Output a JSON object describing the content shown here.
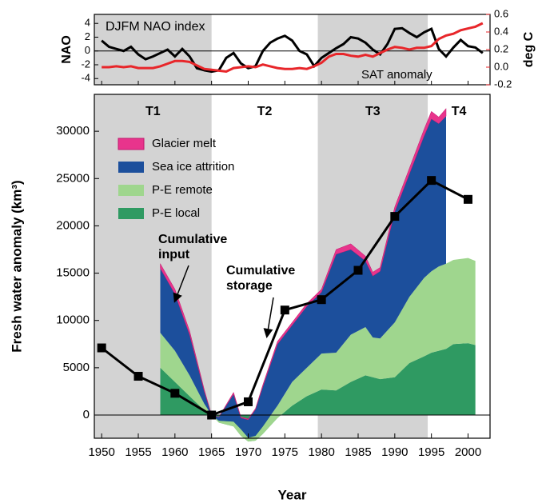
{
  "chart_data": [
    {
      "type": "line",
      "xlim": [
        1949,
        2003
      ],
      "xticks": [
        1950,
        1955,
        1960,
        1965,
        1970,
        1975,
        1980,
        1985,
        1990,
        1995,
        2000
      ],
      "ylim": [
        -4.9,
        5.3
      ],
      "yticks": [
        4,
        2,
        0,
        -2,
        -4
      ],
      "y2lim": [
        -0.2,
        0.6
      ],
      "y2ticks": [
        0.6,
        0.4,
        0.2,
        {
          "value": 0,
          "label": "0.0"
        },
        -0.2
      ],
      "ylabel": "NAO",
      "y2label": "deg C",
      "periods": [
        {
          "start": 1949,
          "end": 1965,
          "shaded": true
        },
        {
          "start": 1965,
          "end": 1979.5,
          "shaded": false
        },
        {
          "start": 1979.5,
          "end": 1994.5,
          "shaded": true
        },
        {
          "start": 1994.5,
          "end": 2003,
          "shaded": false
        }
      ],
      "x": [
        1950,
        1951,
        1952,
        1953,
        1954,
        1955,
        1956,
        1957,
        1958,
        1959,
        1960,
        1961,
        1962,
        1963,
        1964,
        1965,
        1966,
        1967,
        1968,
        1969,
        1970,
        1971,
        1972,
        1973,
        1974,
        1975,
        1976,
        1977,
        1978,
        1979,
        1980,
        1981,
        1982,
        1983,
        1984,
        1985,
        1986,
        1987,
        1988,
        1989,
        1990,
        1991,
        1992,
        1993,
        1994,
        1995,
        1996,
        1997,
        1998,
        1999,
        2000,
        2001,
        2002
      ],
      "series": [
        {
          "name": "DJFM NAO index",
          "color": "#000000",
          "axis": "y",
          "values": [
            1.5,
            0.6,
            0.3,
            0,
            0.6,
            -0.5,
            -1.2,
            -0.8,
            -0.3,
            0.2,
            -0.8,
            0.3,
            -0.8,
            -2.5,
            -2.8,
            -3.0,
            -2.8,
            -1,
            -0.3,
            -1.8,
            -2.5,
            -2.2,
            0,
            1.2,
            1.8,
            2.2,
            1.5,
            0,
            -0.5,
            -2.2,
            -1,
            -0.3,
            0.4,
            1,
            2,
            1.8,
            1.2,
            0.2,
            -0.5,
            1,
            3.2,
            3.3,
            2.6,
            2,
            2.7,
            3.2,
            0.3,
            -0.8,
            0.5,
            1.6,
            0.7,
            0.5,
            -0.3
          ]
        },
        {
          "name": "SAT anomaly",
          "color": "#e8262a",
          "axis": "y2",
          "values": [
            0,
            0,
            0.01,
            0,
            0.01,
            -0.01,
            -0.01,
            -0.01,
            0.01,
            0.04,
            0.07,
            0.07,
            0.06,
            0.02,
            -0.02,
            -0.03,
            -0.04,
            -0.05,
            -0.01,
            0,
            0.01,
            0,
            0.03,
            0.01,
            -0.01,
            -0.02,
            -0.02,
            -0.01,
            -0.02,
            0.01,
            0.05,
            0.12,
            0.15,
            0.15,
            0.13,
            0.12,
            0.14,
            0.12,
            0.16,
            0.2,
            0.23,
            0.22,
            0.2,
            0.22,
            0.22,
            0.24,
            0.32,
            0.36,
            0.38,
            0.42,
            0.44,
            0.46,
            0.5
          ]
        }
      ]
    },
    {
      "type": "stacked-area",
      "xlabel": "Year",
      "ylabel": "Fresh water anomaly (km³)",
      "xlim": [
        1949,
        2003
      ],
      "xticks": [
        1950,
        1955,
        1960,
        1965,
        1970,
        1975,
        1980,
        1985,
        1990,
        1995,
        2000
      ],
      "ylim": [
        -2450,
        33900
      ],
      "yticks": [
        0,
        5000,
        10000,
        15000,
        20000,
        25000,
        30000
      ],
      "periods": [
        {
          "label": "T1",
          "start": 1949,
          "end": 1965,
          "shaded": true
        },
        {
          "label": "T2",
          "start": 1965,
          "end": 1979.5,
          "shaded": false
        },
        {
          "label": "T3",
          "start": 1979.5,
          "end": 1994.5,
          "shaded": true
        },
        {
          "label": "T4",
          "start": 1994.5,
          "end": 2003,
          "shaded": false
        }
      ],
      "x": [
        1958,
        1960,
        1962,
        1964,
        1965,
        1966,
        1968,
        1969,
        1970,
        1971,
        1972,
        1974,
        1976,
        1978,
        1980,
        1982,
        1984,
        1986,
        1987,
        1988,
        1990,
        1992,
        1994,
        1995,
        1996,
        1997,
        1998,
        2000,
        2001
      ],
      "series": [
        {
          "name": "P-E local",
          "color": "#2f9a62",
          "values": [
            5000,
            3500,
            2000,
            500,
            0,
            -800,
            -1200,
            -2200,
            -2800,
            -2700,
            -2000,
            -300,
            1000,
            2000,
            2700,
            2600,
            3500,
            4200,
            4000,
            3800,
            4000,
            5500,
            6200,
            6600,
            6800,
            7000,
            7500,
            7600,
            7400
          ]
        },
        {
          "name": "P-E remote",
          "color": "#9fd68e",
          "values": [
            3700,
            3300,
            2200,
            700,
            0,
            200,
            500,
            700,
            400,
            500,
            800,
            1300,
            2500,
            3000,
            3800,
            4000,
            5000,
            5100,
            4200,
            4300,
            5800,
            7000,
            8300,
            8600,
            8900,
            9000,
            8900,
            9000,
            8900
          ]
        },
        {
          "name": "Sea ice attrition",
          "color": "#1c4f9c",
          "values": [
            6800,
            6000,
            4300,
            1300,
            0,
            400,
            2900,
            1200,
            1900,
            2800,
            4200,
            6500,
            6000,
            6500,
            6500,
            10400,
            9000,
            7000,
            6500,
            7100,
            11700,
            13000,
            15000,
            16100,
            15100,
            15600,
            null,
            null,
            null
          ]
        },
        {
          "name": "Glacier melt",
          "color": "#e8348c",
          "values": [
            500,
            500,
            400,
            200,
            0,
            0,
            200,
            100,
            100,
            100,
            200,
            300,
            300,
            300,
            300,
            500,
            600,
            500,
            400,
            400,
            500,
            600,
            700,
            800,
            700,
            800,
            null,
            null,
            null
          ]
        }
      ],
      "storage": {
        "label": [
          "Cumulative",
          "storage"
        ],
        "color": "#000000",
        "x": [
          1950,
          1955,
          1960,
          1965,
          1970,
          1975,
          1980,
          1985,
          1990,
          1995,
          2000
        ],
        "values": [
          7100,
          4100,
          2300,
          0,
          1400,
          11100,
          12200,
          15300,
          21000,
          24800,
          22800
        ]
      },
      "annotation": [
        "Cumulative",
        "input"
      ]
    }
  ]
}
